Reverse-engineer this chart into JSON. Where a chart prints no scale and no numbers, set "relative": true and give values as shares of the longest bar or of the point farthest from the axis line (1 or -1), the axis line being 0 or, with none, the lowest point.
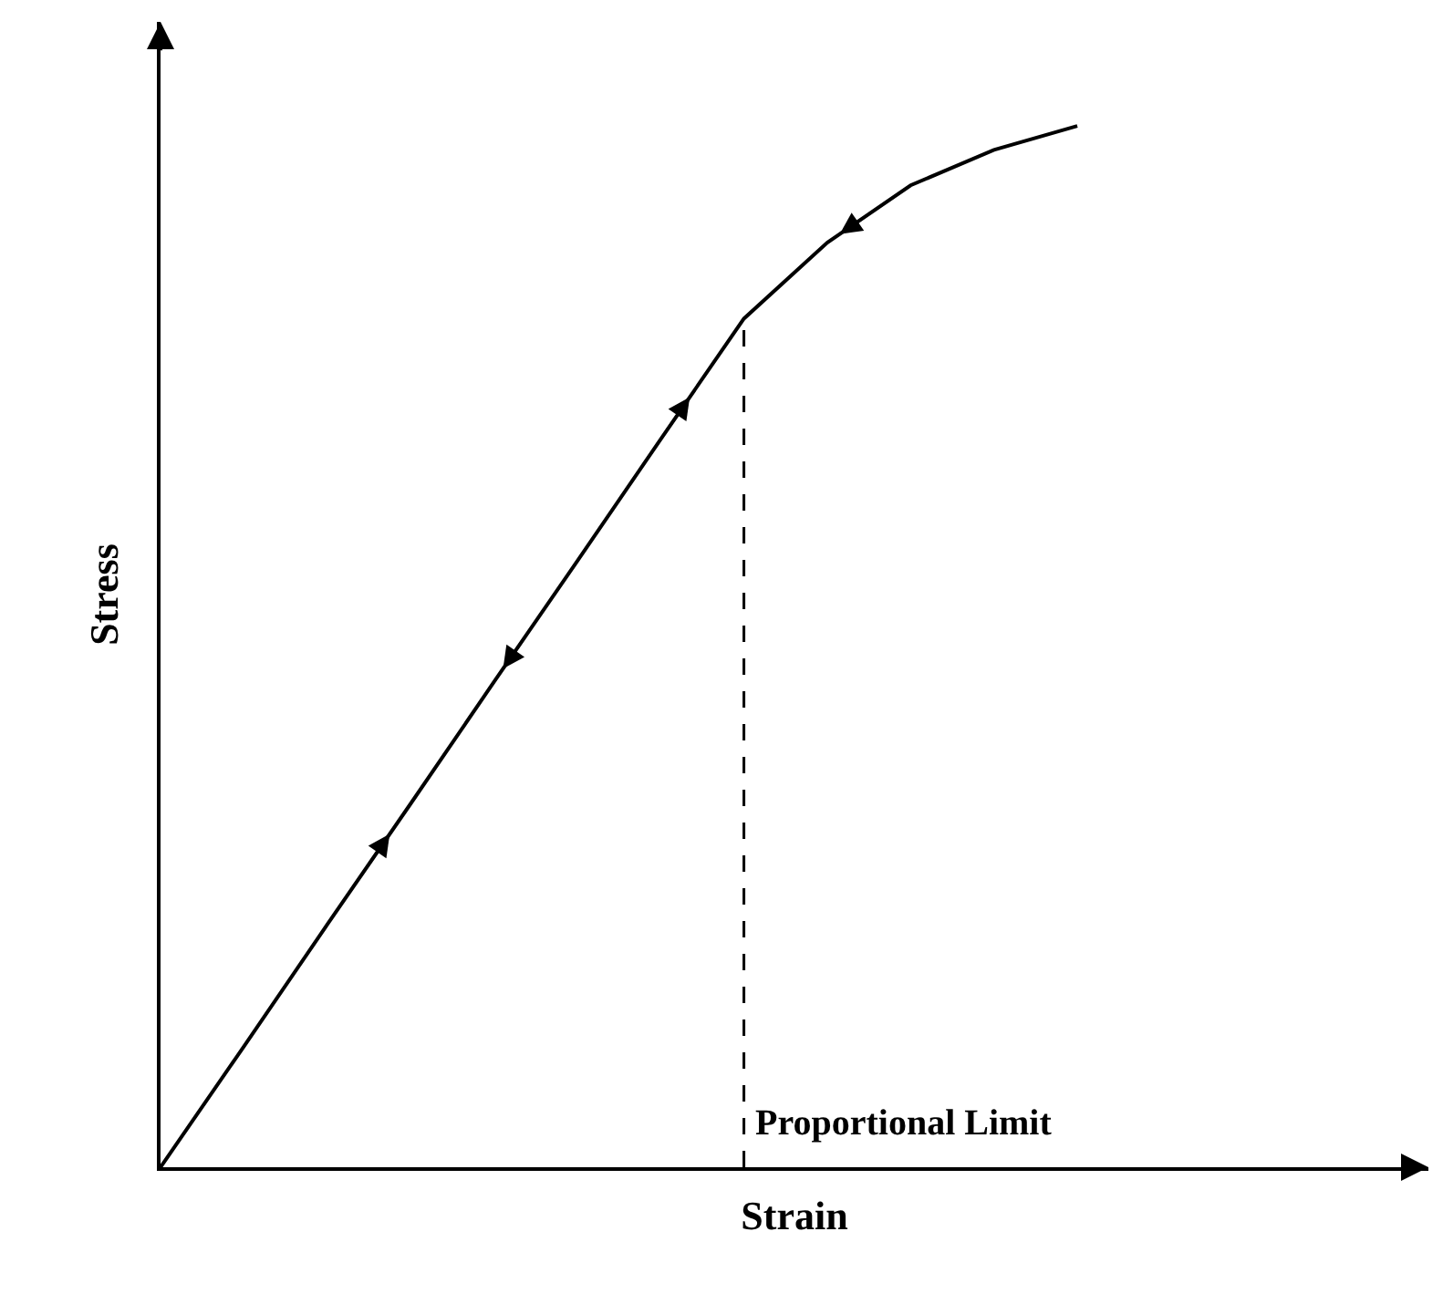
{
  "chart_data": {
    "type": "line",
    "relative": true,
    "xlabel": "Strain",
    "ylabel": "Stress",
    "categories": [
      null,
      null,
      null,
      null,
      null,
      null,
      null,
      null,
      null,
      null,
      null,
      null
    ],
    "series": [
      {
        "color": "#000000",
        "values": [
          0,
          0.116,
          0.233,
          0.349,
          0.466,
          0.582,
          0.699,
          0.815,
          0.888,
          0.943,
          0.977,
          1
        ]
      }
    ],
    "annotations": [
      "Proportional Limit"
    ],
    "marker": "none",
    "line_style": "solid"
  }
}
